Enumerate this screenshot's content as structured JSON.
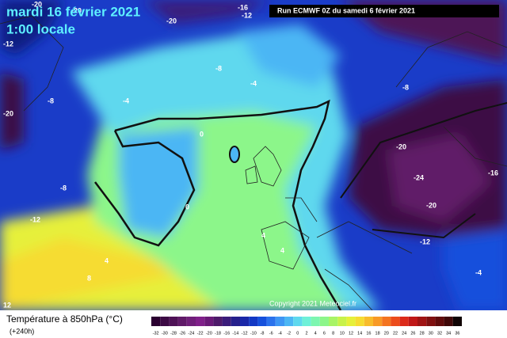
{
  "header": {
    "date": "mardi 16 février 2021",
    "time": "1:00 locale",
    "run": "Run ECMWF 0Z du samedi 6 février 2021"
  },
  "map": {
    "copyright": "Copyright 2021 Meteociel.fr",
    "contour_labels": [
      "-20",
      "-16",
      "-12",
      "-20",
      "-12",
      "-20",
      "-8",
      "-4",
      "-8",
      "-20",
      "-4",
      "0",
      "-8",
      "-12",
      "-20",
      "-24",
      "-16",
      "-20",
      "-12",
      "0",
      "-8",
      "4",
      "4",
      "8",
      "4",
      "-4",
      "12"
    ]
  },
  "legend": {
    "title": "Température à 850hPa (°C)",
    "lead": "(+240h)",
    "scale": [
      -32,
      -30,
      -28,
      -26,
      -24,
      -22,
      -20,
      -18,
      -16,
      -14,
      -12,
      -10,
      -8,
      -6,
      -4,
      -2,
      0,
      2,
      4,
      6,
      8,
      10,
      12,
      14,
      16,
      18,
      20,
      22,
      24,
      26,
      28,
      30,
      32,
      34,
      36
    ],
    "colors": [
      "#2a0030",
      "#3c0a44",
      "#4e1256",
      "#601a68",
      "#701f7a",
      "#80208a",
      "#6a1a78",
      "#4e1a6a",
      "#3a1c7a",
      "#26208c",
      "#1a28a8",
      "#1238c4",
      "#1550dc",
      "#2a72ec",
      "#3e96f4",
      "#4cb6f4",
      "#5ed8ee",
      "#6ef0d8",
      "#7cf6b0",
      "#8cf68a",
      "#a8f466",
      "#c8f24a",
      "#e6f03a",
      "#f6dc32",
      "#f8bc2c",
      "#f89a26",
      "#f47420",
      "#ec4c1c",
      "#dc2a1a",
      "#c01818",
      "#a01414",
      "#801010",
      "#600c0c",
      "#400808",
      "#100404"
    ]
  }
}
